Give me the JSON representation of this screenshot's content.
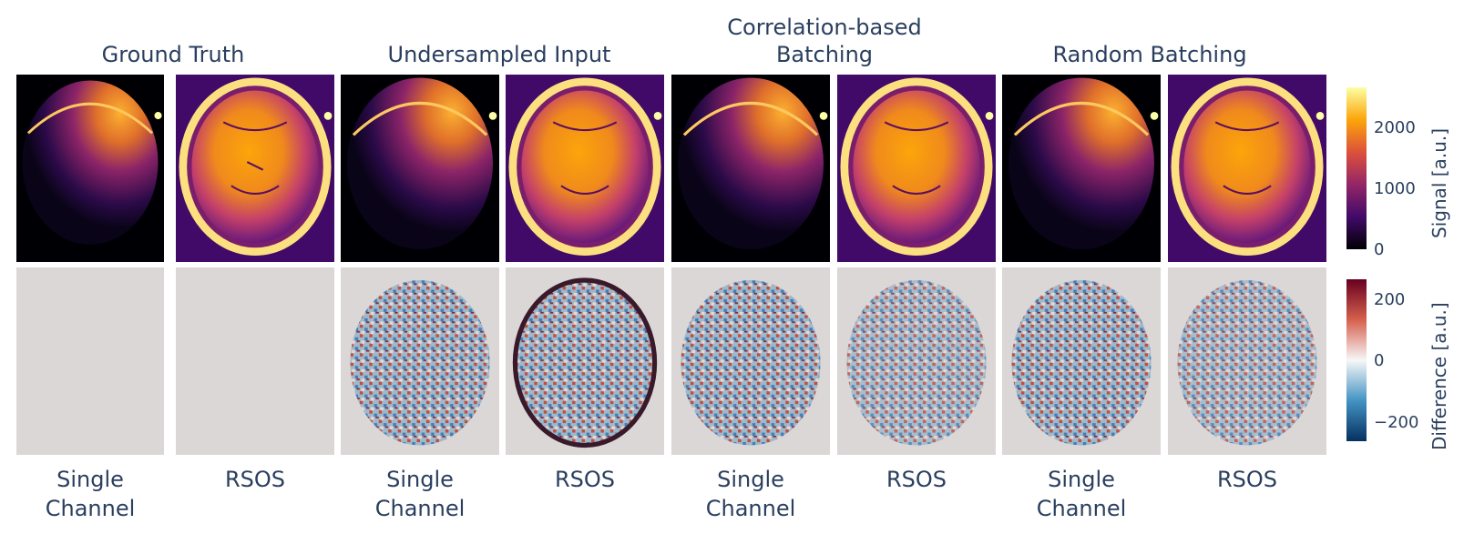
{
  "group_titles": {
    "ground_truth": "Ground Truth",
    "undersampled": "Undersampled Input",
    "correlation_line1": "Correlation-based",
    "correlation_line2": "Batching",
    "random": "Random Batching"
  },
  "column_labels": {
    "single_line1": "Single",
    "single_line2": "Channel",
    "rsos": "RSOS"
  },
  "colorbar_signal": {
    "title": "Signal [a.u.]",
    "ticks": [
      "2000",
      "1000",
      "0"
    ]
  },
  "colorbar_difference": {
    "title": "Difference [a.u.]",
    "ticks": [
      "200",
      "0",
      "−200"
    ]
  },
  "colors": {
    "text": "#2a3f5f",
    "background_panel": "#dcd7d7",
    "inferno": [
      "#000004",
      "#420a68",
      "#932667",
      "#dd513a",
      "#fca50a",
      "#fcffa4"
    ],
    "rdbu": [
      "#67001f",
      "#d6604d",
      "#f7f7f7",
      "#4393c3",
      "#053061"
    ]
  }
}
